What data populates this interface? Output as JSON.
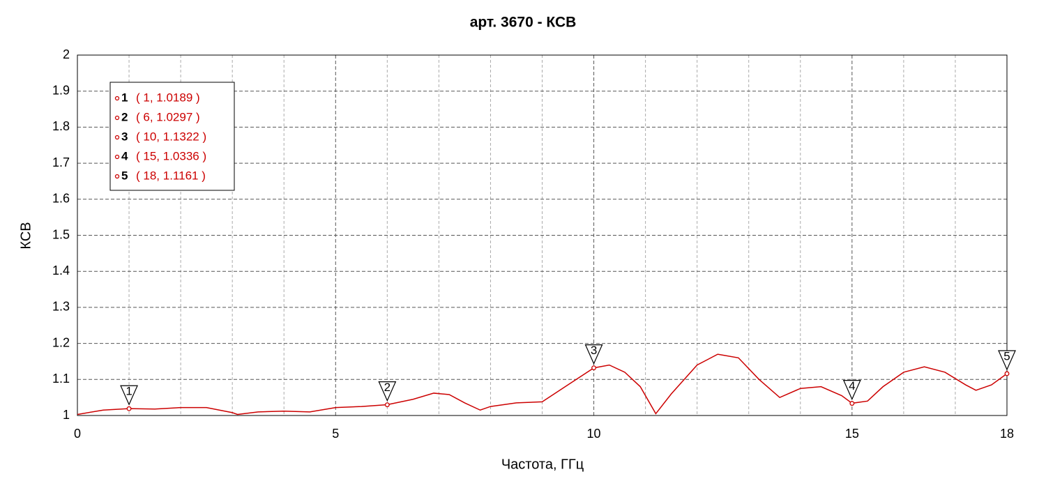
{
  "chart_data": {
    "type": "line",
    "title": "арт. 3670 - КСВ",
    "x_label": "Частота, ГГц",
    "y_label": "КСВ",
    "x": [
      0,
      0.5,
      1,
      1.5,
      2,
      2.5,
      3,
      3.1,
      3.5,
      4,
      4.5,
      5,
      5.5,
      6,
      6.5,
      6.9,
      7.2,
      7.5,
      7.8,
      8,
      8.5,
      9,
      9.5,
      10,
      10.3,
      10.6,
      10.9,
      11.2,
      11.5,
      12,
      12.4,
      12.8,
      13.2,
      13.6,
      14,
      14.4,
      14.8,
      15,
      15.3,
      15.6,
      16,
      16.4,
      16.8,
      17.2,
      17.4,
      17.7,
      18
    ],
    "series": [
      {
        "name": "КСВ",
        "color": "#cc0000",
        "values": [
          1.003,
          1.015,
          1.019,
          1.018,
          1.022,
          1.022,
          1.008,
          1.003,
          1.01,
          1.012,
          1.01,
          1.022,
          1.025,
          1.03,
          1.045,
          1.062,
          1.058,
          1.035,
          1.015,
          1.025,
          1.035,
          1.038,
          1.085,
          1.132,
          1.14,
          1.12,
          1.08,
          1.005,
          1.06,
          1.14,
          1.17,
          1.16,
          1.1,
          1.05,
          1.075,
          1.08,
          1.055,
          1.034,
          1.04,
          1.08,
          1.12,
          1.135,
          1.12,
          1.085,
          1.07,
          1.085,
          1.116
        ]
      }
    ],
    "markers": [
      {
        "label": "1",
        "x": 1,
        "y": 1.0189,
        "value_label": "( 1, 1.0189 )"
      },
      {
        "label": "2",
        "x": 6,
        "y": 1.0297,
        "value_label": "( 6, 1.0297 )"
      },
      {
        "label": "3",
        "x": 10,
        "y": 1.1322,
        "value_label": "( 10, 1.1322 )"
      },
      {
        "label": "4",
        "x": 15,
        "y": 1.0336,
        "value_label": "( 15, 1.0336 )"
      },
      {
        "label": "5",
        "x": 18,
        "y": 1.1161,
        "value_label": "( 18, 1.1161 )"
      }
    ],
    "xlim": [
      0,
      18
    ],
    "xticks": [
      0,
      5,
      10,
      15,
      18
    ],
    "x_minor_grid": [
      1,
      2,
      3,
      4,
      6,
      7,
      8,
      9,
      11,
      12,
      13,
      14,
      16,
      17
    ],
    "ylim": [
      1,
      2
    ],
    "yticks": [
      1,
      1.1,
      1.2,
      1.3,
      1.4,
      1.5,
      1.6,
      1.7,
      1.8,
      1.9,
      2
    ],
    "grid": true
  }
}
